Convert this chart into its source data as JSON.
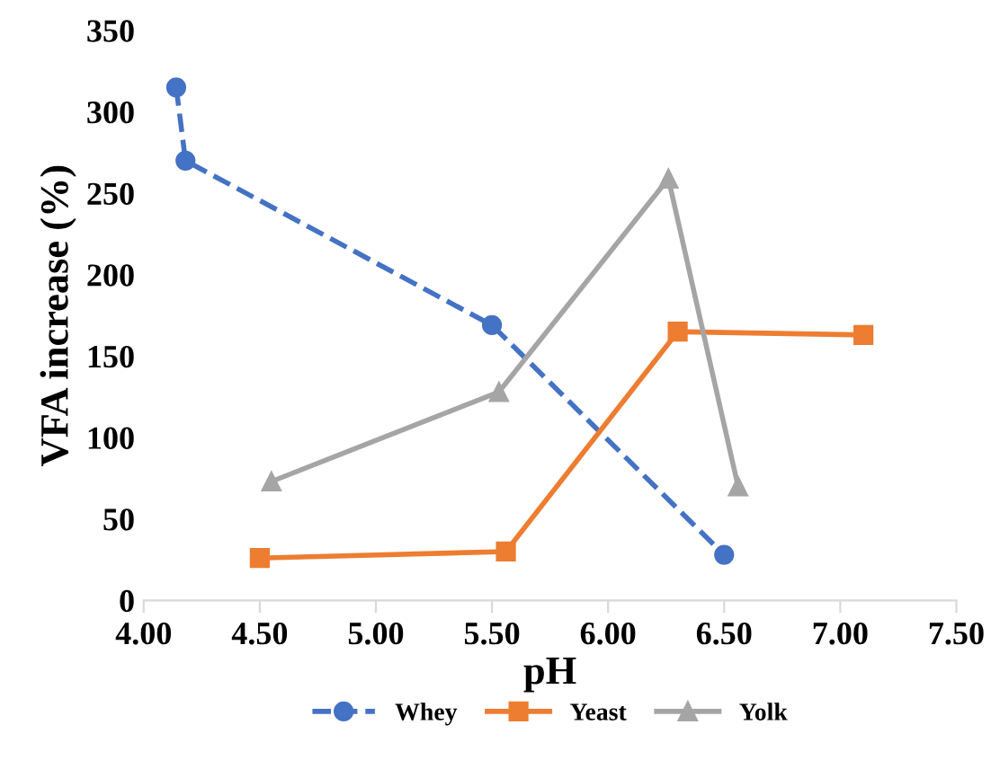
{
  "chart_data": {
    "type": "line",
    "xlabel": "pH",
    "ylabel": "VFA increase (%)",
    "xlim": [
      4.0,
      7.5
    ],
    "xticks": [
      {
        "value": 4.0,
        "label": "4.00"
      },
      {
        "value": 4.5,
        "label": "4.50"
      },
      {
        "value": 5.0,
        "label": "5.00"
      },
      {
        "value": 5.5,
        "label": "5.50"
      },
      {
        "value": 6.0,
        "label": "6.00"
      },
      {
        "value": 6.5,
        "label": "6.50"
      },
      {
        "value": 7.0,
        "label": "7.00"
      },
      {
        "value": 7.5,
        "label": "7.50"
      }
    ],
    "ylim": [
      0,
      350
    ],
    "yticks": [
      0,
      50,
      100,
      150,
      200,
      250,
      300,
      350
    ],
    "grid": false,
    "legend": "bottom",
    "series": [
      {
        "name": "Whey",
        "color": "#4472c4",
        "marker": "circle",
        "line_style": "dashed",
        "x": [
          4.14,
          4.18,
          5.5,
          6.5
        ],
        "values": [
          315,
          270,
          169,
          28
        ]
      },
      {
        "name": "Yeast",
        "color": "#ed7d31",
        "marker": "square",
        "line_style": "solid",
        "x": [
          4.5,
          5.56,
          6.3,
          7.1
        ],
        "values": [
          26,
          30,
          165,
          163
        ]
      },
      {
        "name": "Yolk",
        "color": "#a5a5a5",
        "marker": "triangle",
        "line_style": "solid",
        "x": [
          4.55,
          5.53,
          6.26,
          6.56
        ],
        "values": [
          73,
          128,
          259,
          70
        ]
      }
    ]
  }
}
